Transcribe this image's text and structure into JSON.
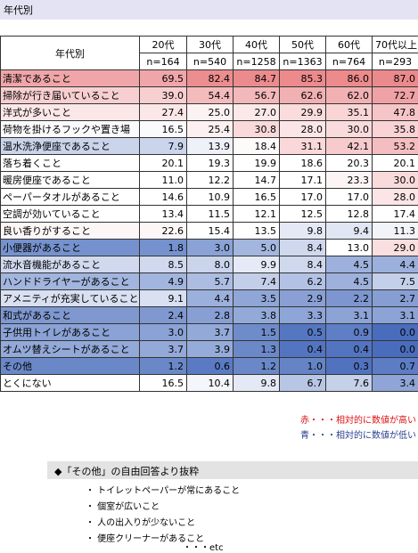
{
  "header": {
    "title": "年代別"
  },
  "table": {
    "row_label_header": "年代別",
    "columns": [
      {
        "label": "20代",
        "n": "n=164"
      },
      {
        "label": "30代",
        "n": "n=540"
      },
      {
        "label": "40代",
        "n": "n=1258"
      },
      {
        "label": "50代",
        "n": "n=1363"
      },
      {
        "label": "60代",
        "n": "n=764"
      },
      {
        "label": "70代以上",
        "n": "n=293"
      }
    ],
    "rows": [
      {
        "label": "清潔であること",
        "values": [
          "69.5",
          "82.4",
          "84.7",
          "85.3",
          "86.0",
          "87.0"
        ],
        "colors": [
          "#f0a6a9",
          "#ec8d8f",
          "#ec8b8d",
          "#ec8a8d",
          "#ec8a8c",
          "#eb8a8c"
        ]
      },
      {
        "label": "掃除が行き届いていること",
        "values": [
          "39.0",
          "54.4",
          "56.7",
          "62.6",
          "62.0",
          "72.7"
        ],
        "colors": [
          "#f8cfd1",
          "#f4bbbd",
          "#f3b8ba",
          "#f1b0b2",
          "#f1b1b3",
          "#efa2a5"
        ]
      },
      {
        "label": "洋式が多いこと",
        "values": [
          "27.4",
          "25.0",
          "27.0",
          "29.9",
          "35.1",
          "47.8"
        ],
        "colors": [
          "#fbe7e8",
          "#fcf2f2",
          "#fbe8e9",
          "#fadcdd",
          "#f9d5d6",
          "#f6c5c7"
        ]
      },
      {
        "label": "荷物を掛けるフックや置き場",
        "values": [
          "16.5",
          "25.4",
          "30.8",
          "28.0",
          "30.0",
          "35.8"
        ],
        "colors": [
          "#fafafc",
          "#fcf0f0",
          "#fad9da",
          "#fbe5e6",
          "#fadbdc",
          "#f9d3d5"
        ]
      },
      {
        "label": "温水洗浄便座であること",
        "values": [
          "7.9",
          "13.9",
          "18.4",
          "31.1",
          "42.1",
          "53.2"
        ],
        "colors": [
          "#cad4eb",
          "#eef1f8",
          "#fdfafa",
          "#fad8d9",
          "#f7cbcd",
          "#f4bec0"
        ]
      },
      {
        "label": "落ち着くこと",
        "values": [
          "20.1",
          "19.3",
          "19.9",
          "18.6",
          "20.3",
          "20.1"
        ],
        "colors": [
          "#fff",
          "#fff",
          "#fff",
          "#fff",
          "#fff",
          "#fff"
        ]
      },
      {
        "label": "暖房便座であること",
        "values": [
          "11.0",
          "12.2",
          "14.7",
          "17.1",
          "23.3",
          "30.0"
        ],
        "colors": [
          "#fff",
          "#fff",
          "#fff",
          "#fff",
          "#fdf5f5",
          "#fadbdc"
        ]
      },
      {
        "label": "ペーパータオルがあること",
        "values": [
          "14.6",
          "10.9",
          "16.5",
          "17.0",
          "17.0",
          "28.0"
        ],
        "colors": [
          "#fff",
          "#fff",
          "#fff",
          "#fff",
          "#fff",
          "#fbe5e6"
        ]
      },
      {
        "label": "空調が効いていること",
        "values": [
          "13.4",
          "11.5",
          "12.1",
          "12.5",
          "12.8",
          "17.4"
        ],
        "colors": [
          "#fff",
          "#fff",
          "#fff",
          "#fff",
          "#fff",
          "#fff"
        ]
      },
      {
        "label": "良い香りがすること",
        "values": [
          "22.6",
          "15.4",
          "13.5",
          "9.8",
          "9.4",
          "11.3"
        ],
        "colors": [
          "#fcf6f6",
          "#fff",
          "#fff",
          "#e4e9f5",
          "#e0e6f4",
          "#f2f4fa"
        ]
      },
      {
        "label": "小便器があること",
        "values": [
          "1.8",
          "3.0",
          "5.0",
          "8.4",
          "13.0",
          "29.0"
        ],
        "colors": [
          "#7692ce",
          "#8aa2d5",
          "#a3b6de",
          "#cfd8ed",
          "#fff",
          "#fadfe0"
        ]
      },
      {
        "label": "流水音機能があること",
        "values": [
          "8.5",
          "8.0",
          "9.9",
          "8.4",
          "4.5",
          "4.4"
        ],
        "colors": [
          "#d0d9ee",
          "#cad4eb",
          "#e5eaf6",
          "#cfd8ed",
          "#9db1dc",
          "#9cb0dc"
        ]
      },
      {
        "label": "ハンドドライヤーがあること",
        "values": [
          "4.9",
          "5.7",
          "7.4",
          "6.2",
          "4.5",
          "7.5"
        ],
        "colors": [
          "#a2b5de",
          "#adbde2",
          "#c3cee8",
          "#b3c2e4",
          "#9db1dc",
          "#c4cfe9"
        ]
      },
      {
        "label": "アメニティが充実していること",
        "values": [
          "9.1",
          "4.4",
          "3.5",
          "2.9",
          "2.2",
          "2.7"
        ],
        "colors": [
          "#d9e0f1",
          "#9cb0dc",
          "#90a6d7",
          "#8aa0d4",
          "#7d96cf",
          "#879ed3"
        ]
      },
      {
        "label": "和式があること",
        "values": [
          "2.4",
          "2.8",
          "3.8",
          "3.3",
          "3.1",
          "3.1"
        ],
        "colors": [
          "#7f98d0",
          "#889fd3",
          "#93aad9",
          "#8ea5d7",
          "#8ca3d6",
          "#8ca3d6"
        ]
      },
      {
        "label": "子供用トイレがあること",
        "values": [
          "3.0",
          "3.7",
          "1.5",
          "0.5",
          "0.9",
          "0.0"
        ],
        "colors": [
          "#8aa2d5",
          "#93a9d8",
          "#6f8cca",
          "#5577c1",
          "#5e7ec5",
          "#4a6cbc"
        ]
      },
      {
        "label": "オムツ替えシートがあること",
        "values": [
          "3.7",
          "3.9",
          "1.3",
          "0.4",
          "0.4",
          "0.0"
        ],
        "colors": [
          "#93a9d8",
          "#95abd9",
          "#6b89c9",
          "#5374c0",
          "#5374c0",
          "#4a6cbc"
        ]
      },
      {
        "label": "その他",
        "values": [
          "1.2",
          "0.6",
          "1.2",
          "1.0",
          "0.3",
          "0.7"
        ],
        "colors": [
          "#6a88c8",
          "#5a7bc3",
          "#6a88c8",
          "#6584c6",
          "#5172bf",
          "#5c7cc4"
        ]
      },
      {
        "label": "とくにない",
        "values": [
          "16.5",
          "10.4",
          "9.8",
          "6.7",
          "7.6",
          "3.4"
        ],
        "colors": [
          "#fff",
          "#f4f6fb",
          "#e4e9f5",
          "#b8c6e5",
          "#c5d0e9",
          "#8fa5d7"
        ]
      }
    ]
  },
  "legend": {
    "red": "赤・・・相対的に数値が高い",
    "blue": "青・・・相対的に数値が低い"
  },
  "notes": {
    "title": "◆「その他」の自由回答より抜粋",
    "items": [
      "・ トイレットペーパーが常にあること",
      "・ 個室が広いこと",
      "・ 人の出入りが少ないこと",
      "・ 便座クリーナーがあること"
    ],
    "etc": "・・・etc"
  }
}
